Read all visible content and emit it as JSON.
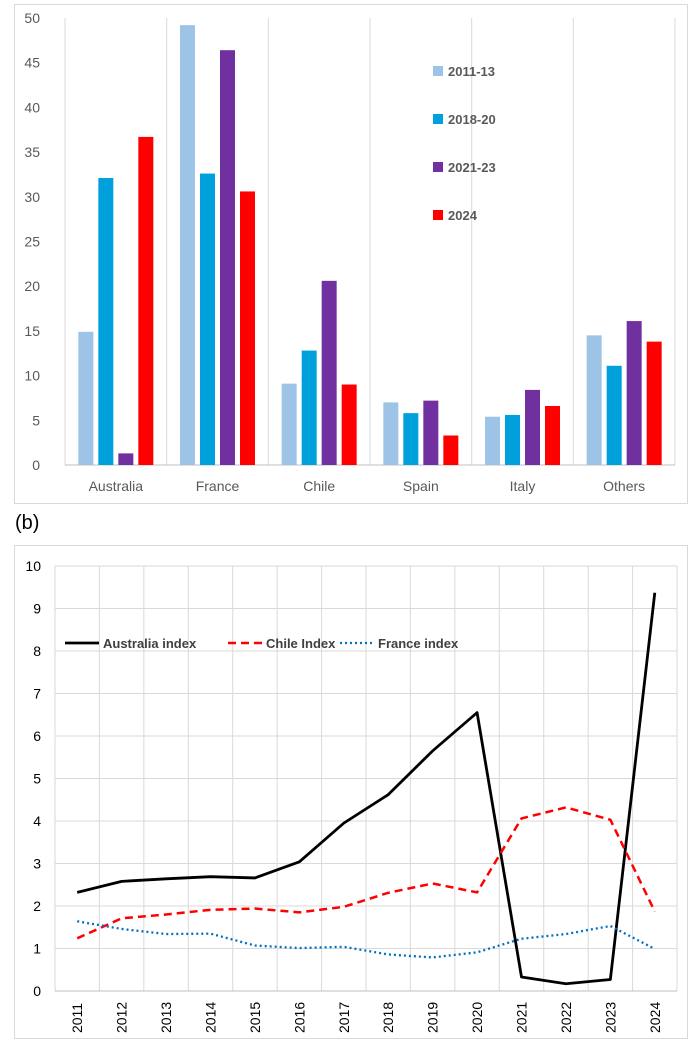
{
  "panel_b_label": "(b)",
  "chart_data": [
    {
      "type": "bar",
      "categories": [
        "Australia",
        "France",
        "Chile",
        "Spain",
        "Italy",
        "Others"
      ],
      "series": [
        {
          "name": "2011-13",
          "color": "#9dc3e6",
          "values": [
            14.9,
            49.2,
            9.1,
            7.0,
            5.4,
            14.5
          ]
        },
        {
          "name": "2018-20",
          "color": "#00a0dd",
          "values": [
            32.1,
            32.6,
            12.8,
            5.8,
            5.6,
            11.1
          ]
        },
        {
          "name": "2021-23",
          "color": "#7030a0",
          "values": [
            1.3,
            46.4,
            20.6,
            7.2,
            8.4,
            16.1
          ]
        },
        {
          "name": "2024",
          "color": "#ff0000",
          "values": [
            36.7,
            30.6,
            9.0,
            3.3,
            6.6,
            13.8
          ]
        }
      ],
      "ylim": [
        0,
        50
      ],
      "yticks": [
        0,
        5,
        10,
        15,
        20,
        25,
        30,
        35,
        40,
        45,
        50
      ],
      "grid": "vertical",
      "legend_position": "upper-right"
    },
    {
      "type": "line",
      "x": [
        "2011",
        "2012",
        "2013",
        "2014",
        "2015",
        "2016",
        "2017",
        "2018",
        "2019",
        "2020",
        "2021",
        "2022",
        "2023",
        "2024"
      ],
      "series": [
        {
          "name": "Australia index",
          "color": "#000000",
          "style": "solid",
          "values": [
            2.32,
            2.58,
            2.64,
            2.69,
            2.66,
            3.04,
            3.95,
            4.62,
            5.65,
            6.55,
            0.33,
            0.17,
            0.27,
            9.37
          ]
        },
        {
          "name": "Chile Index",
          "color": "#ff0000",
          "style": "dashed",
          "values": [
            1.24,
            1.71,
            1.8,
            1.91,
            1.94,
            1.85,
            1.98,
            2.31,
            2.53,
            2.32,
            4.06,
            4.32,
            4.03,
            1.87
          ]
        },
        {
          "name": "France index",
          "color": "#0070c0",
          "style": "dotted",
          "values": [
            1.64,
            1.46,
            1.34,
            1.35,
            1.07,
            1.01,
            1.04,
            0.86,
            0.79,
            0.91,
            1.23,
            1.34,
            1.53,
            0.99
          ]
        }
      ],
      "ylim": [
        0,
        10
      ],
      "yticks": [
        0,
        1,
        2,
        3,
        4,
        5,
        6,
        7,
        8,
        9,
        10
      ],
      "grid": "both",
      "legend_position": "top-left"
    }
  ]
}
